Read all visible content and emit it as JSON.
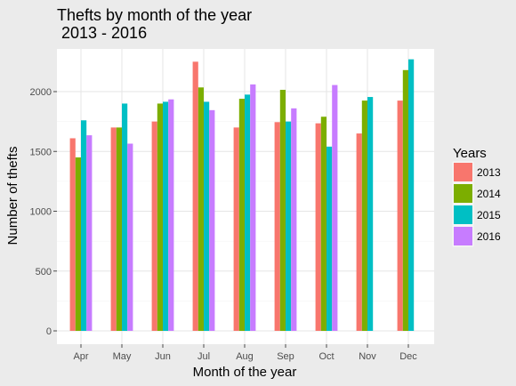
{
  "chart_data": {
    "type": "bar",
    "title": [
      "Thefts by month of the year",
      " 2013 - 2016"
    ],
    "xlabel": "Month of the year",
    "ylabel": "Number of thefts",
    "categories": [
      "Apr",
      "May",
      "Jun",
      "Jul",
      "Aug",
      "Sep",
      "Oct",
      "Nov",
      "Dec"
    ],
    "ylim": [
      0,
      2350
    ],
    "yticks": [
      0,
      500,
      1000,
      1500,
      2000
    ],
    "grid": true,
    "legend": {
      "title": "Years",
      "position": "right"
    },
    "series": [
      {
        "name": "2013",
        "color": "#f8766d",
        "values": [
          1610,
          1700,
          1750,
          2250,
          1700,
          1745,
          1735,
          1650,
          1925
        ]
      },
      {
        "name": "2014",
        "color": "#7cae00",
        "values": [
          1450,
          1700,
          1900,
          2035,
          1940,
          2015,
          1790,
          1925,
          2180
        ]
      },
      {
        "name": "2015",
        "color": "#00bfc4",
        "values": [
          1760,
          1900,
          1915,
          1915,
          1975,
          1750,
          1540,
          1955,
          2270
        ]
      },
      {
        "name": "2016",
        "color": "#c77cff",
        "values": [
          1635,
          1565,
          1935,
          1845,
          2060,
          1860,
          2055,
          null,
          null
        ]
      }
    ]
  }
}
